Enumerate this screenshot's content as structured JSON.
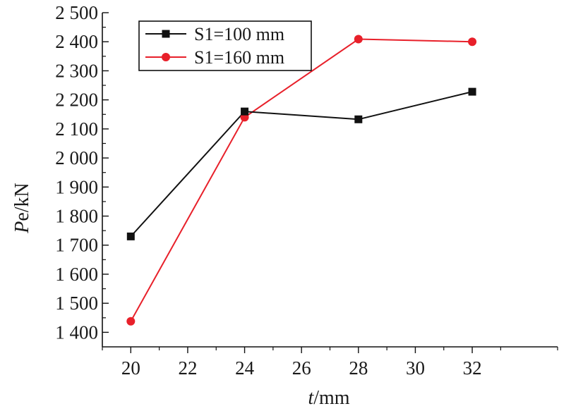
{
  "chart_data": {
    "type": "line",
    "xlabel": {
      "italic": "t",
      "rest": "/mm"
    },
    "ylabel": {
      "italic": "P",
      "rest": "e/kN"
    },
    "x": [
      20,
      24,
      28,
      32
    ],
    "xlim": [
      19,
      35
    ],
    "ylim": [
      1350,
      2500
    ],
    "x_ticks": [
      20,
      22,
      24,
      26,
      28,
      30,
      32
    ],
    "x_tick_labels": [
      "20",
      "22",
      "24",
      "26",
      "28",
      "30",
      "32"
    ],
    "y_ticks": [
      1400,
      1500,
      1600,
      1700,
      1800,
      1900,
      2000,
      2100,
      2200,
      2300,
      2400,
      2500
    ],
    "y_tick_labels": [
      "1 400",
      "1 500",
      "1 600",
      "1 700",
      "1 800",
      "1 900",
      "2 000",
      "2 100",
      "2 200",
      "2 300",
      "2 400",
      "2 500"
    ],
    "grid": false,
    "legend_position": "top-left",
    "series": [
      {
        "name": "S1=100 mm",
        "values": [
          1730,
          2160,
          2133,
          2228
        ],
        "color": "#111111",
        "marker": "square"
      },
      {
        "name": "S1=160 mm",
        "values": [
          1438,
          2140,
          2409,
          2400
        ],
        "color": "#e8202a",
        "marker": "circle"
      }
    ]
  }
}
